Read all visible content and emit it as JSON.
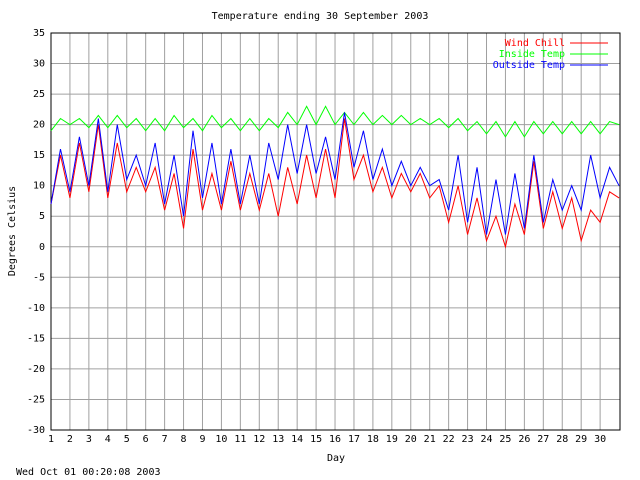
{
  "chart_data": {
    "type": "line",
    "title": "Temperature ending 30 September 2003",
    "x_label": "Day",
    "y_label": "Degrees Celsius",
    "footer": "Wed Oct 01 00:20:08 2003",
    "x": [
      1,
      1.5,
      2,
      2.5,
      3,
      3.5,
      4,
      4.5,
      5,
      5.5,
      6,
      6.5,
      7,
      7.5,
      8,
      8.5,
      9,
      9.5,
      10,
      10.5,
      11,
      11.5,
      12,
      12.5,
      13,
      13.5,
      14,
      14.5,
      15,
      15.5,
      16,
      16.5,
      17,
      17.5,
      18,
      18.5,
      19,
      19.5,
      20,
      20.5,
      21,
      21.5,
      22,
      22.5,
      23,
      23.5,
      24,
      24.5,
      25,
      25.5,
      26,
      26.5,
      27,
      27.5,
      28,
      28.5,
      29,
      29.5,
      30,
      30.5,
      31
    ],
    "series": [
      {
        "name": "Wind Chill",
        "color": "#ff0000",
        "values": [
          7,
          15,
          8,
          17,
          9,
          20,
          8,
          17,
          9,
          13,
          9,
          13,
          6,
          12,
          3,
          16,
          6,
          12,
          6,
          14,
          6,
          12,
          6,
          12,
          5,
          13,
          7,
          15,
          8,
          16,
          8,
          21,
          11,
          15,
          9,
          13,
          8,
          12,
          9,
          12,
          8,
          10,
          4,
          10,
          2,
          8,
          1,
          5,
          0,
          7,
          2,
          14,
          3,
          9,
          3,
          8,
          1,
          6,
          4,
          9,
          8
        ]
      },
      {
        "name": "Inside Temp",
        "color": "#00ff00",
        "values": [
          19,
          21,
          20,
          21,
          19.5,
          21.5,
          19.5,
          21.5,
          19.5,
          21,
          19,
          21,
          19,
          21.5,
          19.5,
          21,
          19,
          21.5,
          19.5,
          21,
          19,
          21,
          19,
          21,
          19.5,
          22,
          20,
          23,
          20,
          23,
          20,
          22,
          20,
          22,
          20,
          21.5,
          20,
          21.5,
          20,
          21,
          20,
          21,
          19.5,
          21,
          19,
          20.5,
          18.5,
          20.5,
          18,
          20.5,
          18,
          20.5,
          18.5,
          20.5,
          18.5,
          20.5,
          18.5,
          20.5,
          18.5,
          20.5,
          20
        ]
      },
      {
        "name": "Outside Temp",
        "color": "#0000ff",
        "values": [
          7,
          16,
          9,
          18,
          10,
          21,
          9,
          20,
          11,
          15,
          10,
          17,
          7,
          15,
          5,
          19,
          8,
          17,
          7,
          16,
          7,
          15,
          7,
          17,
          11,
          20,
          12,
          20,
          12,
          18,
          11,
          22,
          13,
          19,
          11,
          16,
          10,
          14,
          10,
          13,
          10,
          11,
          6,
          15,
          4,
          13,
          2,
          11,
          2,
          12,
          3,
          15,
          4,
          11,
          6,
          10,
          6,
          15,
          8,
          13,
          10
        ]
      }
    ],
    "xlim": [
      1,
      31.05
    ],
    "ylim": [
      -30,
      35
    ],
    "xticks": [
      1,
      2,
      3,
      4,
      5,
      6,
      7,
      8,
      9,
      10,
      11,
      12,
      13,
      14,
      15,
      16,
      17,
      18,
      19,
      20,
      21,
      22,
      23,
      24,
      25,
      26,
      27,
      28,
      29,
      30
    ],
    "yticks": [
      -30,
      -25,
      -20,
      -15,
      -10,
      -5,
      0,
      5,
      10,
      15,
      20,
      25,
      30,
      35
    ],
    "grid": true
  }
}
